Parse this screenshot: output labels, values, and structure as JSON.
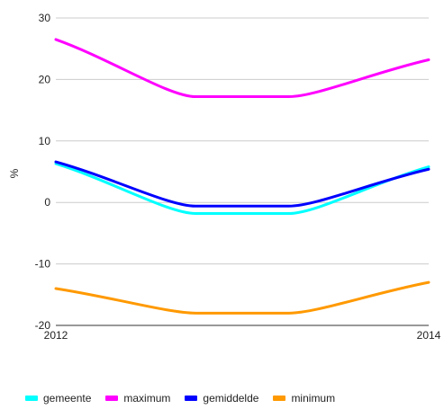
{
  "chart_data": {
    "type": "line",
    "x": [
      2012,
      2013,
      2014
    ],
    "x_tick_labels": [
      "2012",
      "2014"
    ],
    "ylabel": "%",
    "ylim": [
      -20,
      30
    ],
    "yticks": [
      -20,
      -10,
      0,
      10,
      20,
      30
    ],
    "y_tick_labels": [
      "-20",
      "-10",
      "0",
      "10",
      "20",
      "30"
    ],
    "grid": true,
    "legend_position": "bottom-left",
    "series": [
      {
        "name": "gemeente",
        "color": "#00ffff",
        "values": [
          6.3,
          -1.8,
          5.8
        ]
      },
      {
        "name": "maximum",
        "color": "#ff00ff",
        "values": [
          26.5,
          17.2,
          23.2
        ]
      },
      {
        "name": "gemiddelde",
        "color": "#0000ff",
        "values": [
          6.6,
          -0.6,
          5.4
        ]
      },
      {
        "name": "minimum",
        "color": "#ff9900",
        "values": [
          -14.0,
          -18.0,
          -13.0
        ]
      }
    ]
  }
}
